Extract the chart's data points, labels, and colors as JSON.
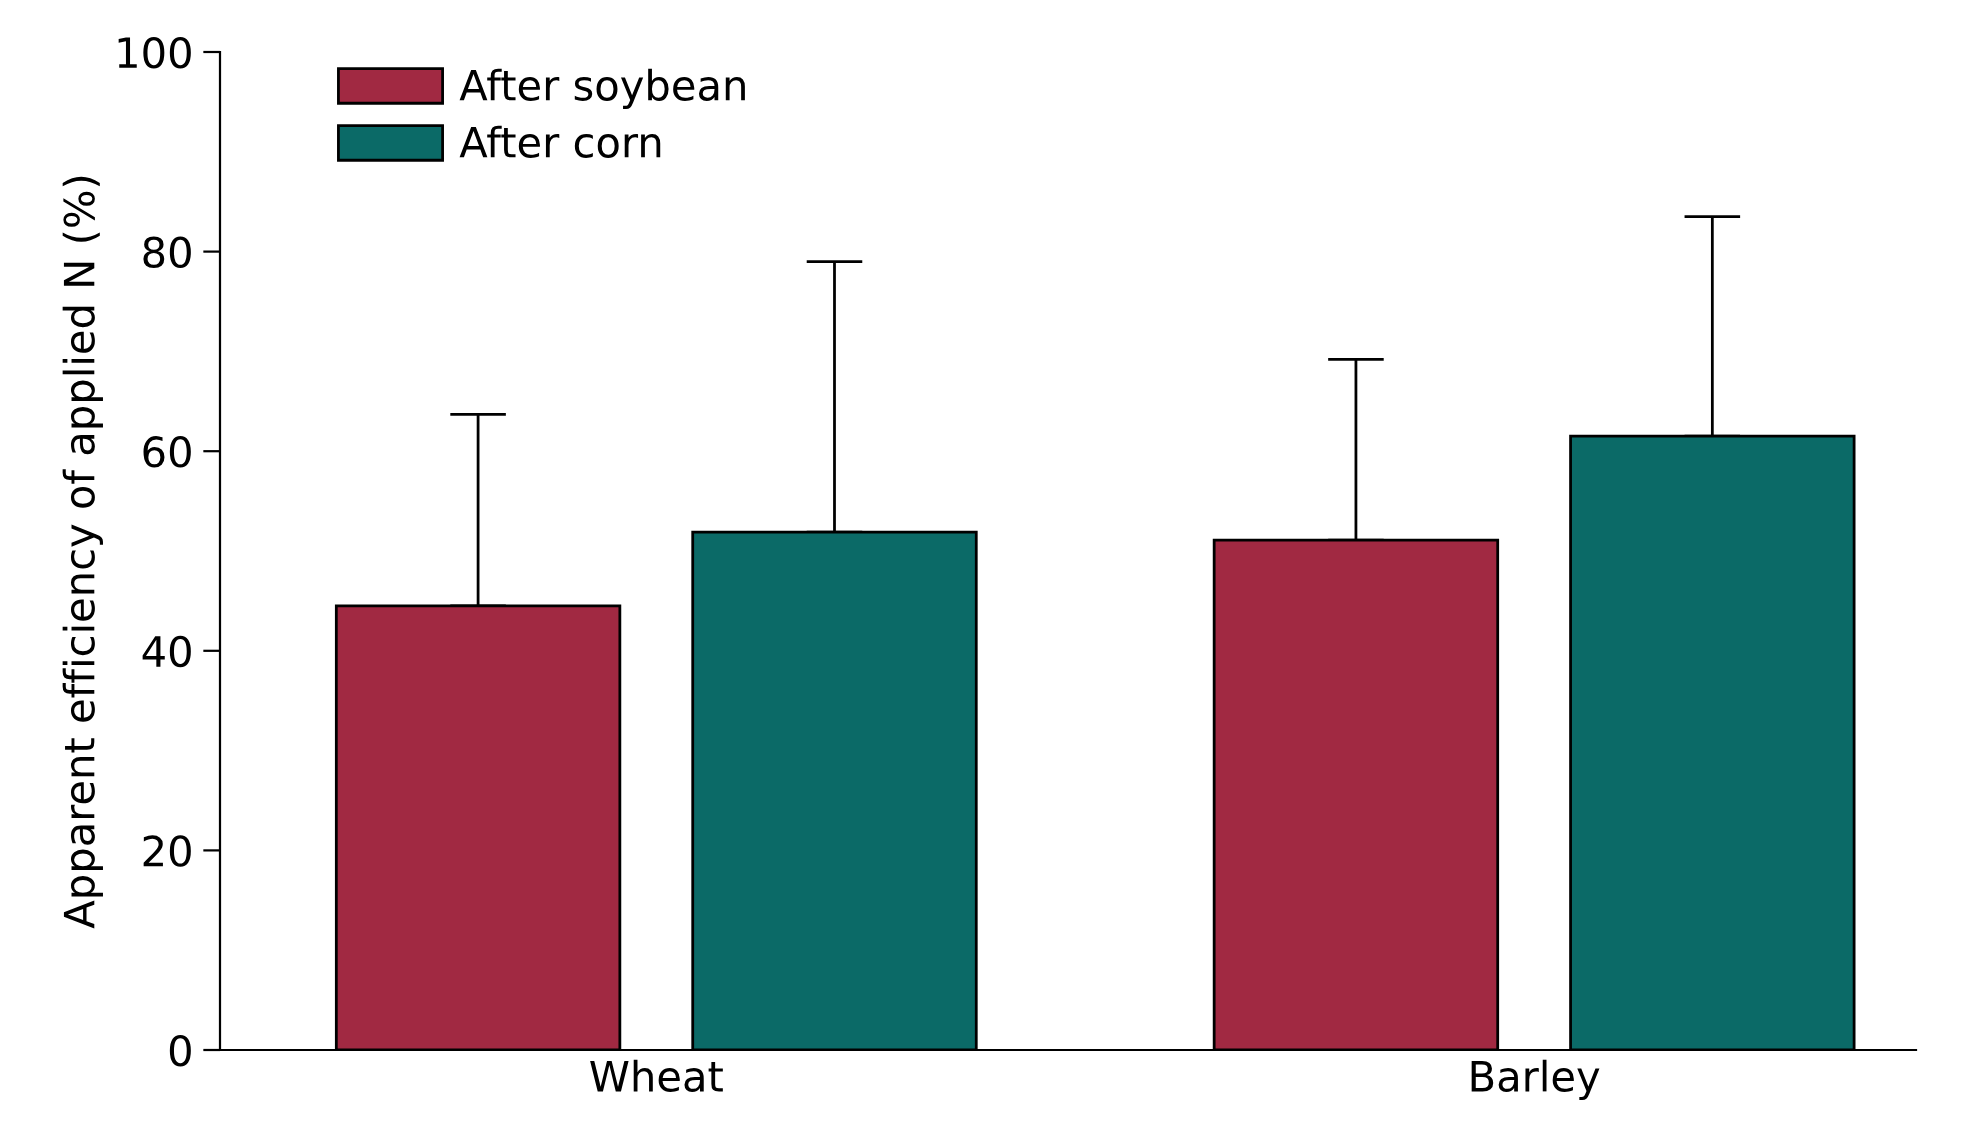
{
  "chart_data": {
    "type": "bar",
    "ylabel": "Apparent efficiency of applied N (%)",
    "categories": [
      "Wheat",
      "Barley"
    ],
    "series": [
      {
        "name": "After soybean",
        "color": "#a12942",
        "values": [
          44.5,
          51.1
        ],
        "errors": [
          [
            44.5,
            63.7
          ],
          [
            51.1,
            69.2
          ]
        ]
      },
      {
        "name": "After corn",
        "color": "#0b6a67",
        "values": [
          51.9,
          61.5
        ],
        "errors": [
          [
            51.9,
            79.0
          ],
          [
            61.5,
            83.5
          ]
        ]
      }
    ],
    "ylim": [
      0,
      100
    ],
    "yticks": [
      0,
      20,
      40,
      60,
      80,
      100
    ],
    "grid": false,
    "legend": "top left"
  }
}
